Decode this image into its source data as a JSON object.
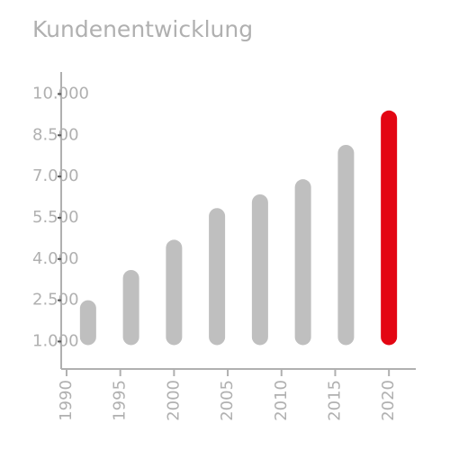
{
  "chart_data": {
    "type": "bar",
    "title": "Kundenentwicklung",
    "x": [
      1992,
      1996,
      2000,
      2004,
      2008,
      2012,
      2016,
      2020
    ],
    "values": [
      2500,
      3600,
      4700,
      5850,
      6350,
      6900,
      8150,
      9400
    ],
    "colors": [
      "#bfbfbf",
      "#bfbfbf",
      "#bfbfbf",
      "#bfbfbf",
      "#bfbfbf",
      "#bfbfbf",
      "#bfbfbf",
      "#e30613"
    ],
    "xlim": [
      1989.5,
      2022.5
    ],
    "xticks": [
      1990,
      1995,
      2000,
      2005,
      2010,
      2015,
      2020
    ],
    "ylim": [
      0,
      10800
    ],
    "yticks": [
      {
        "value": 1000,
        "label": "1.000"
      },
      {
        "value": 2500,
        "label": "2.500"
      },
      {
        "value": 4000,
        "label": "4.000"
      },
      {
        "value": 5500,
        "label": "5.500"
      },
      {
        "value": 7000,
        "label": "7.000"
      },
      {
        "value": 8500,
        "label": "8.500"
      },
      {
        "value": 10000,
        "label": "10.000"
      }
    ],
    "grid": false
  }
}
